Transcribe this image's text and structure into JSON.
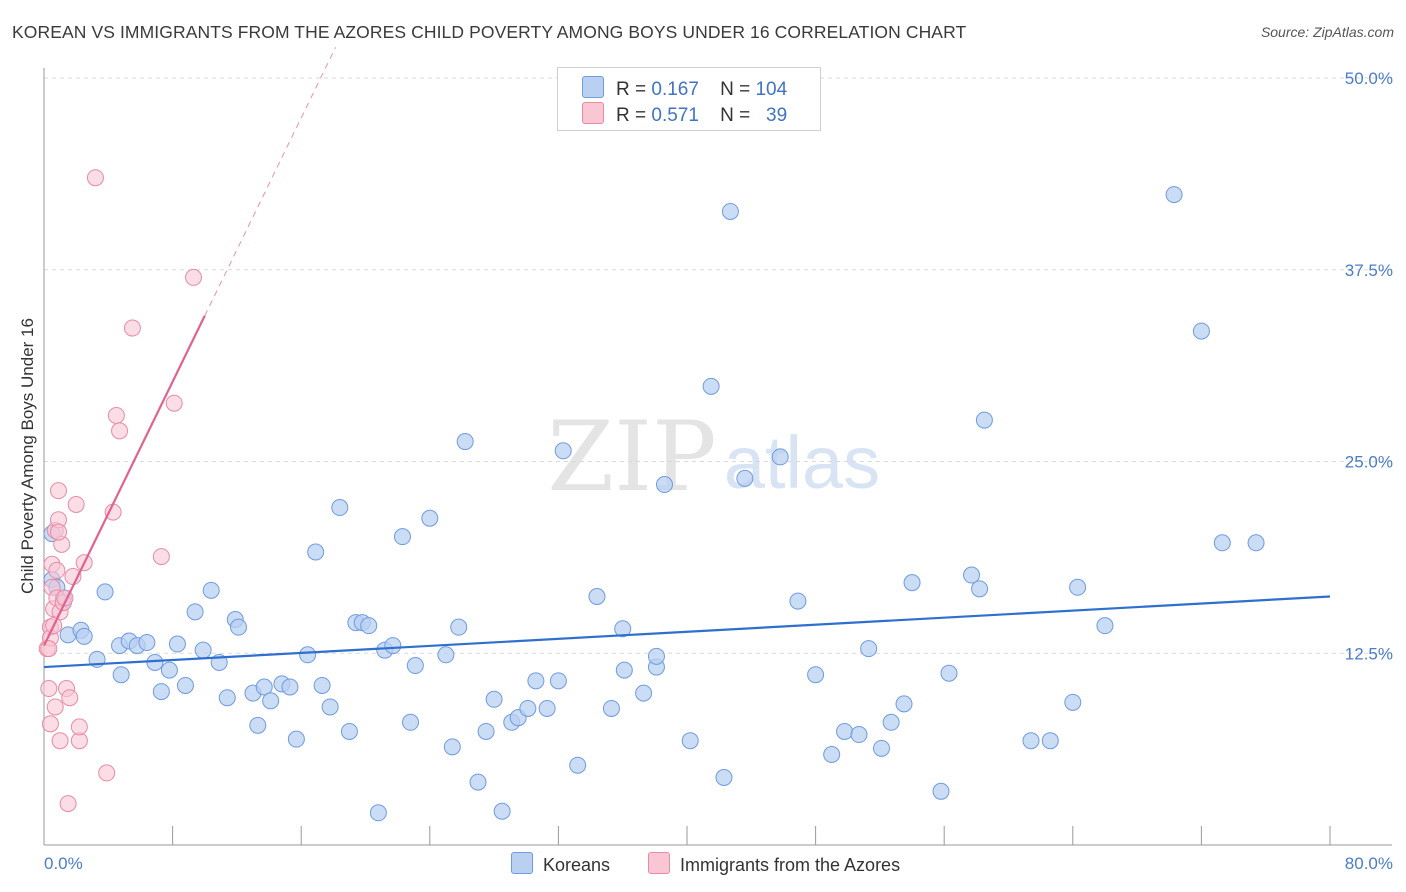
{
  "title": "KOREAN VS IMMIGRANTS FROM THE AZORES CHILD POVERTY AMONG BOYS UNDER 16 CORRELATION CHART",
  "source": "Source: ZipAtlas.com",
  "watermark": {
    "zip": "ZIP",
    "atlas": "atlas"
  },
  "legend": {
    "r_label": "R =",
    "n_label": "N =",
    "rows": [
      {
        "name": "Koreans",
        "r": "0.167",
        "n": "104"
      },
      {
        "name": "Immigrants from the Azores",
        "r": "0.571",
        "n": "39"
      }
    ]
  },
  "colors": {
    "koreans_fill": "#b9d0f1",
    "koreans_stroke": "#6f9be0",
    "koreans_line": "#2f6fcf",
    "azores_fill": "#f9c6d4",
    "azores_stroke": "#e98aa6",
    "azores_line": "#e0628f"
  },
  "chart_data": {
    "type": "scatter",
    "title": "KOREAN VS IMMIGRANTS FROM THE AZORES CHILD POVERTY AMONG BOYS UNDER 16 CORRELATION CHART",
    "xlabel": "",
    "ylabel": "Child Poverty Among Boys Under 16",
    "xlim": [
      0,
      80
    ],
    "ylim": [
      0,
      50
    ],
    "x_tick_labels": [
      "0.0%",
      "80.0%"
    ],
    "y_ticks": [
      12.5,
      25.0,
      37.5,
      50.0
    ],
    "y_tick_labels": [
      "12.5%",
      "25.0%",
      "37.5%",
      "50.0%"
    ],
    "series": [
      {
        "name": "Koreans",
        "r": 0.167,
        "n": 104,
        "trend": {
          "x": [
            0,
            80
          ],
          "y": [
            11.6,
            16.2
          ]
        },
        "points": [
          [
            0.5,
            20.3
          ],
          [
            0.5,
            17.3
          ],
          [
            1.2,
            15.8
          ],
          [
            1.2,
            16.1
          ],
          [
            1.5,
            13.7
          ],
          [
            2.3,
            14.0
          ],
          [
            2.5,
            13.6
          ],
          [
            3.3,
            12.1
          ],
          [
            3.8,
            16.5
          ],
          [
            4.7,
            13.0
          ],
          [
            4.8,
            11.1
          ],
          [
            5.3,
            13.3
          ],
          [
            5.8,
            13.0
          ],
          [
            6.4,
            13.2
          ],
          [
            6.9,
            11.9
          ],
          [
            7.3,
            10.0
          ],
          [
            7.8,
            11.4
          ],
          [
            8.3,
            13.1
          ],
          [
            8.8,
            10.4
          ],
          [
            9.4,
            15.2
          ],
          [
            9.9,
            12.7
          ],
          [
            10.4,
            16.6
          ],
          [
            10.9,
            11.9
          ],
          [
            11.4,
            9.6
          ],
          [
            11.9,
            14.7
          ],
          [
            12.1,
            14.2
          ],
          [
            13.0,
            9.9
          ],
          [
            13.3,
            7.8
          ],
          [
            13.7,
            10.3
          ],
          [
            14.1,
            9.4
          ],
          [
            14.8,
            10.5
          ],
          [
            15.3,
            10.3
          ],
          [
            15.7,
            6.9
          ],
          [
            16.4,
            12.4
          ],
          [
            16.9,
            19.1
          ],
          [
            17.3,
            10.4
          ],
          [
            17.8,
            9.0
          ],
          [
            18.4,
            22.0
          ],
          [
            19.0,
            7.4
          ],
          [
            19.4,
            14.5
          ],
          [
            19.8,
            14.5
          ],
          [
            20.2,
            14.3
          ],
          [
            20.8,
            2.1
          ],
          [
            21.2,
            12.7
          ],
          [
            21.7,
            13.0
          ],
          [
            22.3,
            20.1
          ],
          [
            22.8,
            8.0
          ],
          [
            23.1,
            11.7
          ],
          [
            24.0,
            21.3
          ],
          [
            25.0,
            12.4
          ],
          [
            25.4,
            6.4
          ],
          [
            25.8,
            14.2
          ],
          [
            26.2,
            26.3
          ],
          [
            27.0,
            4.1
          ],
          [
            27.5,
            7.4
          ],
          [
            28.0,
            9.5
          ],
          [
            28.5,
            2.2
          ],
          [
            29.1,
            8.0
          ],
          [
            29.5,
            8.3
          ],
          [
            30.1,
            8.9
          ],
          [
            30.6,
            10.7
          ],
          [
            31.3,
            8.9
          ],
          [
            32.0,
            10.7
          ],
          [
            32.3,
            25.7
          ],
          [
            33.2,
            5.2
          ],
          [
            34.4,
            16.2
          ],
          [
            35.3,
            8.9
          ],
          [
            36.0,
            14.1
          ],
          [
            36.1,
            11.4
          ],
          [
            37.3,
            9.9
          ],
          [
            38.1,
            11.6
          ],
          [
            38.1,
            12.3
          ],
          [
            38.6,
            23.5
          ],
          [
            40.2,
            6.8
          ],
          [
            41.5,
            29.9
          ],
          [
            42.3,
            4.4
          ],
          [
            42.7,
            41.3
          ],
          [
            43.6,
            23.9
          ],
          [
            45.8,
            25.3
          ],
          [
            46.9,
            15.9
          ],
          [
            48.0,
            11.1
          ],
          [
            49.0,
            5.9
          ],
          [
            49.8,
            7.4
          ],
          [
            50.7,
            7.2
          ],
          [
            51.3,
            12.8
          ],
          [
            52.1,
            6.3
          ],
          [
            52.7,
            8.0
          ],
          [
            53.5,
            9.2
          ],
          [
            54.0,
            17.1
          ],
          [
            55.8,
            3.5
          ],
          [
            56.3,
            11.2
          ],
          [
            57.7,
            17.6
          ],
          [
            58.5,
            27.7
          ],
          [
            58.2,
            16.7
          ],
          [
            61.4,
            6.8
          ],
          [
            62.6,
            6.8
          ],
          [
            64.0,
            9.3
          ],
          [
            64.3,
            16.8
          ],
          [
            66.0,
            14.3
          ],
          [
            70.3,
            42.4
          ],
          [
            72.0,
            33.5
          ],
          [
            73.3,
            19.7
          ],
          [
            75.4,
            19.7
          ],
          [
            0.8,
            16.8
          ]
        ]
      },
      {
        "name": "Immigrants from the Azores",
        "r": 0.571,
        "n": 39,
        "trend": {
          "x": [
            0,
            10
          ],
          "y": [
            13.0,
            34.5
          ]
        },
        "points": [
          [
            0.2,
            12.8
          ],
          [
            0.3,
            10.2
          ],
          [
            0.4,
            14.2
          ],
          [
            0.4,
            13.5
          ],
          [
            0.4,
            7.9
          ],
          [
            0.5,
            16.8
          ],
          [
            0.5,
            18.3
          ],
          [
            0.6,
            15.4
          ],
          [
            0.7,
            9.0
          ],
          [
            0.7,
            20.5
          ],
          [
            0.8,
            16.1
          ],
          [
            0.8,
            17.9
          ],
          [
            0.9,
            23.1
          ],
          [
            0.9,
            21.2
          ],
          [
            1.0,
            6.8
          ],
          [
            1.0,
            15.2
          ],
          [
            1.1,
            19.6
          ],
          [
            1.2,
            15.8
          ],
          [
            1.3,
            16.1
          ],
          [
            1.4,
            10.2
          ],
          [
            1.5,
            2.7
          ],
          [
            1.6,
            9.6
          ],
          [
            1.8,
            17.5
          ],
          [
            2.0,
            22.2
          ],
          [
            2.2,
            6.8
          ],
          [
            2.2,
            7.7
          ],
          [
            2.5,
            18.4
          ],
          [
            3.2,
            43.5
          ],
          [
            3.9,
            4.7
          ],
          [
            4.3,
            21.7
          ],
          [
            4.5,
            28.0
          ],
          [
            4.7,
            27.0
          ],
          [
            5.5,
            33.7
          ],
          [
            7.3,
            18.8
          ],
          [
            8.1,
            28.8
          ],
          [
            9.3,
            37.0
          ],
          [
            0.3,
            12.8
          ],
          [
            0.6,
            14.3
          ],
          [
            0.9,
            20.4
          ]
        ]
      }
    ]
  }
}
